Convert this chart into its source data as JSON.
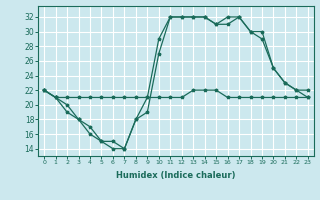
{
  "xlabel": "Humidex (Indice chaleur)",
  "bg_color": "#cce8ee",
  "grid_color": "#ffffff",
  "line_color": "#1a6b5a",
  "xlim": [
    -0.5,
    23.5
  ],
  "ylim": [
    13,
    33.5
  ],
  "yticks": [
    14,
    16,
    18,
    20,
    22,
    24,
    26,
    28,
    30,
    32
  ],
  "xticks": [
    0,
    1,
    2,
    3,
    4,
    5,
    6,
    7,
    8,
    9,
    10,
    11,
    12,
    13,
    14,
    15,
    16,
    17,
    18,
    19,
    20,
    21,
    22,
    23
  ],
  "line1_x": [
    0,
    1,
    2,
    3,
    4,
    5,
    6,
    7,
    8,
    9,
    10,
    11,
    12,
    13,
    14,
    15,
    16,
    17,
    18,
    19,
    20,
    21,
    22,
    23
  ],
  "line1_y": [
    22,
    21,
    19,
    18,
    17,
    15,
    15,
    14,
    18,
    21,
    29,
    32,
    32,
    32,
    32,
    31,
    32,
    32,
    30,
    30,
    25,
    23,
    22,
    22
  ],
  "line2_x": [
    0,
    1,
    2,
    3,
    4,
    5,
    6,
    7,
    8,
    9,
    10,
    11,
    12,
    13,
    14,
    15,
    16,
    17,
    18,
    19,
    20,
    21,
    22,
    23
  ],
  "line2_y": [
    22,
    21,
    20,
    18,
    16,
    15,
    14,
    14,
    18,
    19,
    27,
    32,
    32,
    32,
    32,
    31,
    31,
    32,
    30,
    29,
    25,
    23,
    22,
    21
  ],
  "line3_x": [
    0,
    1,
    2,
    3,
    4,
    5,
    6,
    7,
    8,
    9,
    10,
    11,
    12,
    13,
    14,
    15,
    16,
    17,
    18,
    19,
    20,
    21,
    22,
    23
  ],
  "line3_y": [
    22,
    21,
    21,
    21,
    21,
    21,
    21,
    21,
    21,
    21,
    21,
    21,
    21,
    22,
    22,
    22,
    21,
    21,
    21,
    21,
    21,
    21,
    21,
    21
  ]
}
